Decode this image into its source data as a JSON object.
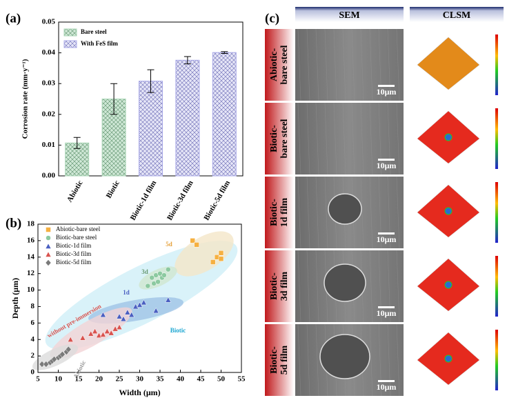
{
  "chart_data": [
    {
      "type": "bar",
      "panel": "(a)",
      "ylabel": "Corrosion rate (mm·y⁻¹)",
      "categories": [
        "Abiotic",
        "Biotic",
        "Biotic-1d film",
        "Biotic-3d film",
        "Biotic-5d film"
      ],
      "series": [
        {
          "name": "Bare steel",
          "color": "#a8d5b5",
          "values": [
            0.0107,
            0.025,
            null,
            null,
            null
          ],
          "errors": [
            0.0018,
            0.005,
            null,
            null,
            null
          ]
        },
        {
          "name": "With FeS film",
          "color": "#a9a9e8",
          "values": [
            null,
            null,
            0.0308,
            0.0376,
            0.0401
          ],
          "errors": [
            null,
            null,
            0.0037,
            0.0012,
            0.0003
          ]
        }
      ],
      "ylim": [
        0,
        0.05
      ],
      "yticks": [
        {
          "value": 0,
          "label": "0.00"
        },
        0.01,
        0.02,
        0.03,
        0.04,
        0.05
      ],
      "legend": "upper left"
    },
    {
      "type": "scatter",
      "panel": "(b)",
      "xlabel": "Width (μm)",
      "ylabel": "Depth (μm)",
      "xlim": [
        5,
        55
      ],
      "xticks": [
        5,
        10,
        15,
        20,
        25,
        30,
        35,
        40,
        45,
        50,
        55
      ],
      "ylim": [
        0,
        18
      ],
      "yticks": [
        0,
        2,
        4,
        6,
        8,
        10,
        12,
        14,
        16,
        18
      ],
      "legend": "upper left",
      "series": [
        {
          "name": "Abiotic-bare steel",
          "color": "#f5b041",
          "marker": "square",
          "x": [
            43,
            44,
            48,
            49,
            50,
            50
          ],
          "values": [
            16,
            15.5,
            13.4,
            14,
            14.5,
            13.8
          ]
        },
        {
          "name": "Biotic-bare steel",
          "color": "#8cc9a0",
          "marker": "circle",
          "x": [
            32,
            33,
            33.5,
            34,
            34.5,
            35,
            35.5,
            36,
            37
          ],
          "values": [
            10.5,
            11.5,
            10.8,
            11.8,
            11,
            12,
            11.5,
            11.8,
            12.5
          ]
        },
        {
          "name": "Biotic-1d film",
          "color": "#4a5fc1",
          "marker": "triangle",
          "x": [
            21,
            25,
            26,
            27,
            28,
            29,
            30,
            31,
            34,
            37
          ],
          "values": [
            7,
            6.8,
            6.5,
            7.3,
            7,
            8,
            8.2,
            8.5,
            7.5,
            8.8
          ]
        },
        {
          "name": "Biotic-3d film",
          "color": "#d9534f",
          "marker": "triangle",
          "x": [
            13,
            16,
            18,
            19,
            20,
            21,
            22,
            23,
            24,
            25
          ],
          "values": [
            4,
            4.2,
            4.7,
            5,
            4.5,
            4.6,
            5,
            4.8,
            5.3,
            5.5
          ]
        },
        {
          "name": "Biotic-5d film",
          "color": "#7a7a7a",
          "marker": "diamond",
          "x": [
            6,
            7,
            8,
            8.5,
            9,
            10,
            10.5,
            11,
            12,
            12.5
          ],
          "values": [
            1,
            1,
            1.2,
            1.4,
            1.6,
            1.8,
            2,
            2.2,
            2.5,
            2.8
          ]
        }
      ],
      "annotations": [
        "Abiotic",
        "without pre-immersion",
        "1d",
        "3d",
        "5d",
        "Biotic"
      ]
    }
  ],
  "panel_c": {
    "label": "(c)",
    "columns": [
      "SEM",
      "CLSM"
    ],
    "rows": [
      {
        "label": [
          "Abiotic-",
          "bare steel"
        ],
        "scale_bar": "10μm"
      },
      {
        "label": [
          "Biotic-",
          "bare steel"
        ],
        "scale_bar": "10μm"
      },
      {
        "label": [
          "Biotic-",
          "1d film"
        ],
        "scale_bar": "10μm"
      },
      {
        "label": [
          "Biotic-",
          "3d film"
        ],
        "scale_bar": "10μm"
      },
      {
        "label": [
          "Biotic-",
          "5d film"
        ],
        "scale_bar": "10μm"
      }
    ]
  }
}
